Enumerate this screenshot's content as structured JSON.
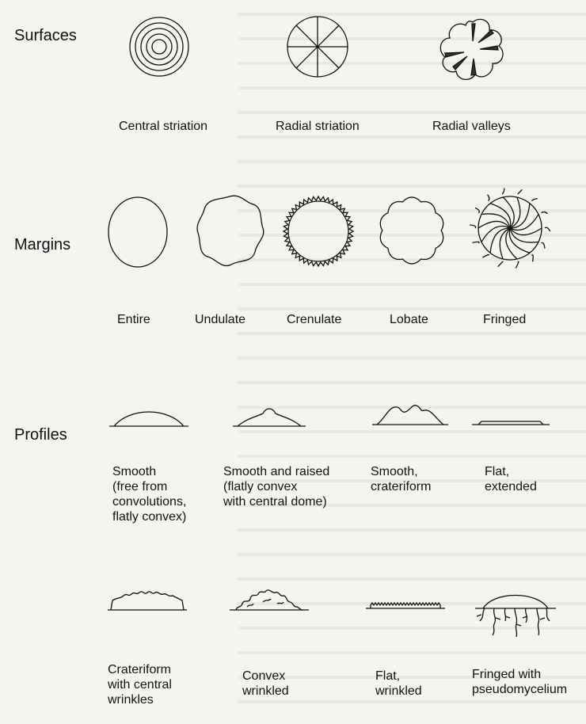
{
  "sections": {
    "surfaces": "Surfaces",
    "margins": "Margins",
    "profiles": "Profiles"
  },
  "surfaces": {
    "central_striation": "Central striation",
    "radial_striation": "Radial striation",
    "radial_valleys": "Radial valleys"
  },
  "margins": {
    "entire": "Entire",
    "undulate": "Undulate",
    "crenulate": "Crenulate",
    "lobate": "Lobate",
    "fringed": "Fringed"
  },
  "profiles": {
    "smooth": "Smooth\n(free from\nconvolutions,\nflatly convex)",
    "smooth_raised": "Smooth and raised\n(flatly convex\nwith central dome)",
    "crateriform": "Smooth,\ncrateriform",
    "flat_extended": "Flat,\nextended",
    "crateriform_wrinkles": "Crateriform\nwith central\nwrinkles",
    "convex_wrinkled": "Convex\nwrinkled",
    "flat_wrinkled": "Flat,\nwrinkled",
    "fringed_pseudomycelium": "Fringed with\npseudomycelium"
  }
}
